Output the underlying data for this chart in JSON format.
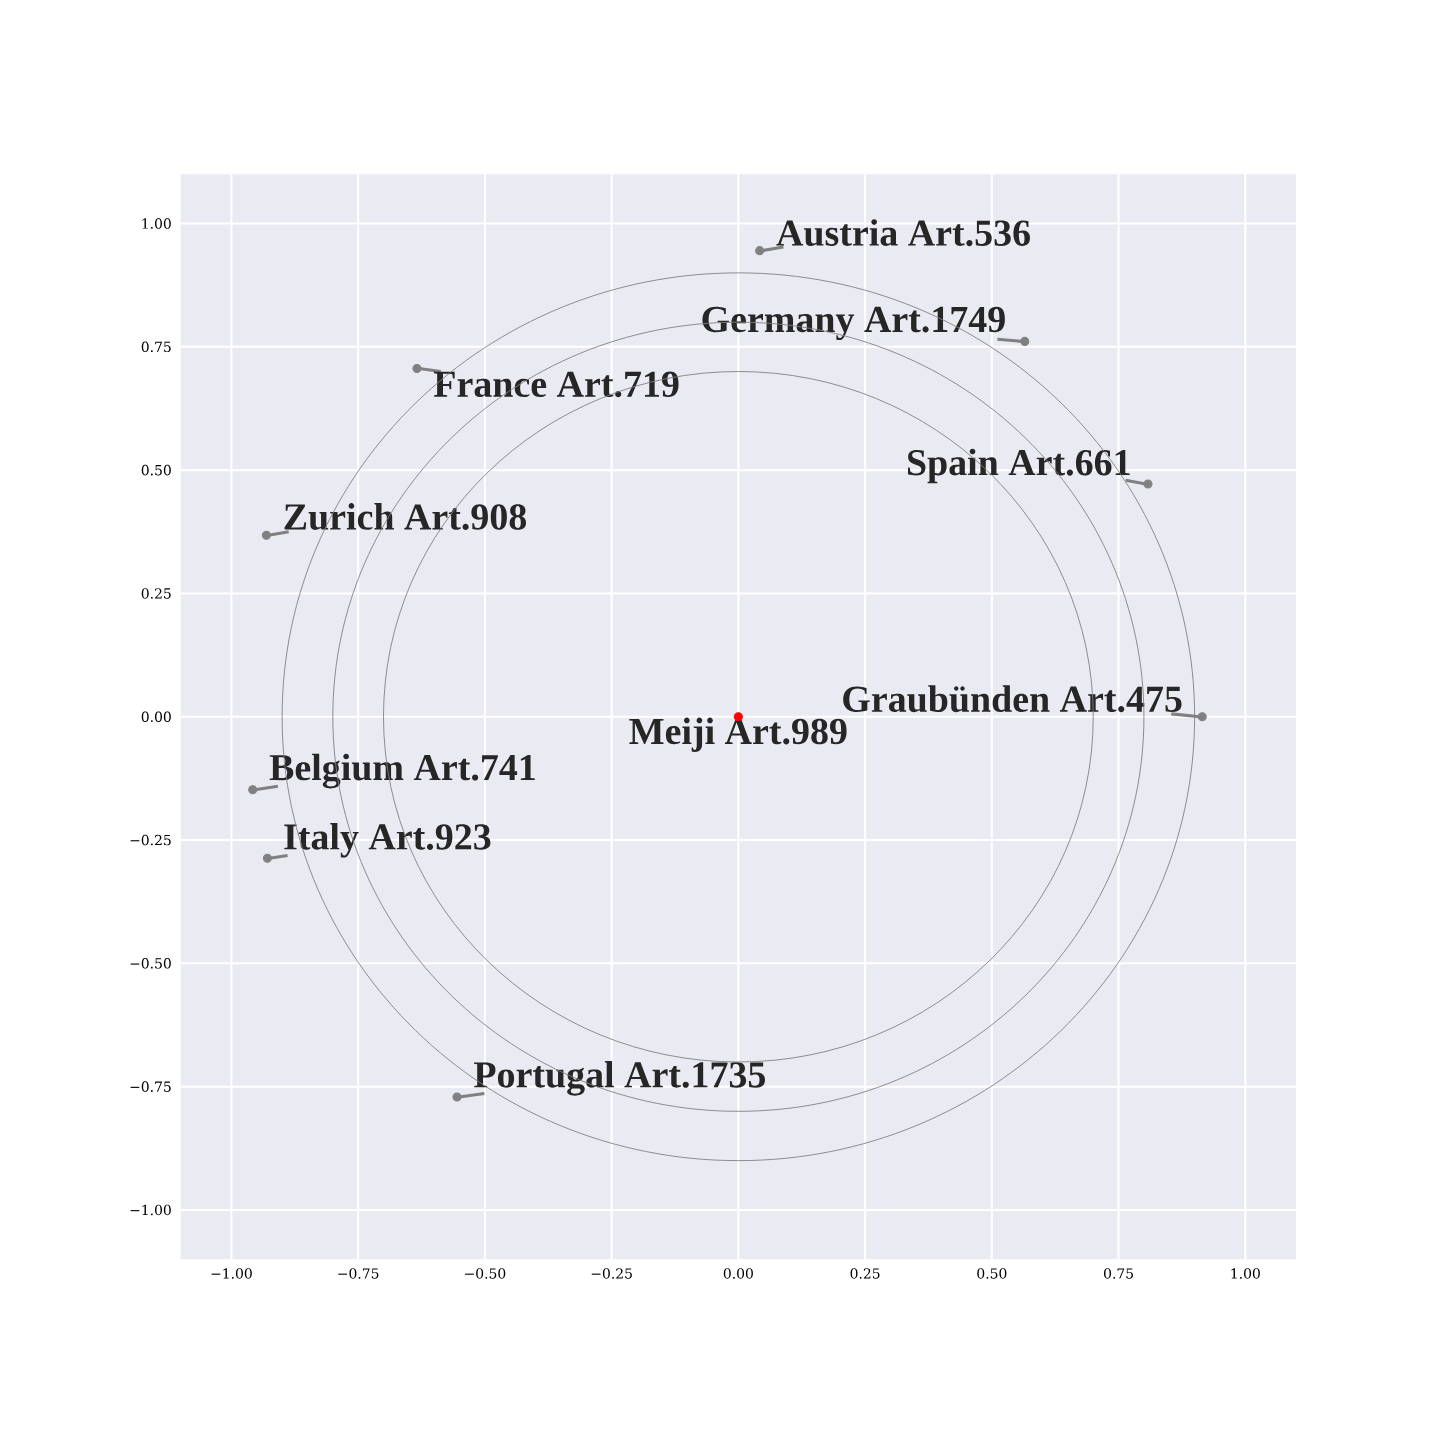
{
  "chart_data": {
    "type": "scatter",
    "xlim": [
      -1.1,
      1.1
    ],
    "ylim": [
      -1.1,
      1.1
    ],
    "xticks": [
      {
        "value": -1,
        "label": "−1.00"
      },
      {
        "value": -0.75,
        "label": "−0.75"
      },
      {
        "value": -0.5,
        "label": "−0.50"
      },
      {
        "value": -0.25,
        "label": "−0.25"
      },
      {
        "value": 0,
        "label": "0.00"
      },
      {
        "value": 0.25,
        "label": "0.25"
      },
      {
        "value": 0.5,
        "label": "0.50"
      },
      {
        "value": 0.75,
        "label": "0.75"
      },
      {
        "value": 1,
        "label": "1.00"
      }
    ],
    "yticks": [
      {
        "value": -1,
        "label": "−1.00"
      },
      {
        "value": -0.75,
        "label": "−0.75"
      },
      {
        "value": -0.5,
        "label": "−0.50"
      },
      {
        "value": -0.25,
        "label": "−0.25"
      },
      {
        "value": 0,
        "label": "0.00"
      },
      {
        "value": 0.25,
        "label": "0.25"
      },
      {
        "value": 0.5,
        "label": "0.50"
      },
      {
        "value": 0.75,
        "label": "0.75"
      },
      {
        "value": 1,
        "label": "1.00"
      }
    ],
    "grid": true,
    "series": [
      {
        "type": "scatter",
        "x": [
          0.042,
          0.565,
          -0.634,
          0.808,
          -0.931,
          0.915,
          0,
          -0.958,
          -0.929,
          -0.555
        ],
        "values": [
          0.945,
          0.761,
          0.706,
          0.472,
          0.368,
          0,
          0,
          -0.148,
          -0.287,
          -0.771
        ],
        "colors": [
          "#808080",
          "#808080",
          "#808080",
          "#808080",
          "#808080",
          "#808080",
          "#ff0000",
          "#808080",
          "#808080",
          "#808080"
        ]
      }
    ],
    "annotations": [
      {
        "text": "Austria Art.536",
        "x": 0.042,
        "y": 0.945
      },
      {
        "text": "Germany Art.1749",
        "x": 0.565,
        "y": 0.761
      },
      {
        "text": "France Art.719",
        "x": -0.634,
        "y": 0.706
      },
      {
        "text": "Spain Art.661",
        "x": 0.808,
        "y": 0.472
      },
      {
        "text": "Zurich Art.908",
        "x": -0.931,
        "y": 0.368
      },
      {
        "text": "Graubünden Art.475",
        "x": 0.915,
        "y": 0
      },
      {
        "text": "Meiji Art.989",
        "x": 0,
        "y": 0
      },
      {
        "text": "Belgium Art.741",
        "x": -0.958,
        "y": -0.148
      },
      {
        "text": "Italy Art.923",
        "x": -0.929,
        "y": -0.287
      },
      {
        "text": "Portugal Art.1735",
        "x": -0.555,
        "y": -0.771
      }
    ]
  }
}
